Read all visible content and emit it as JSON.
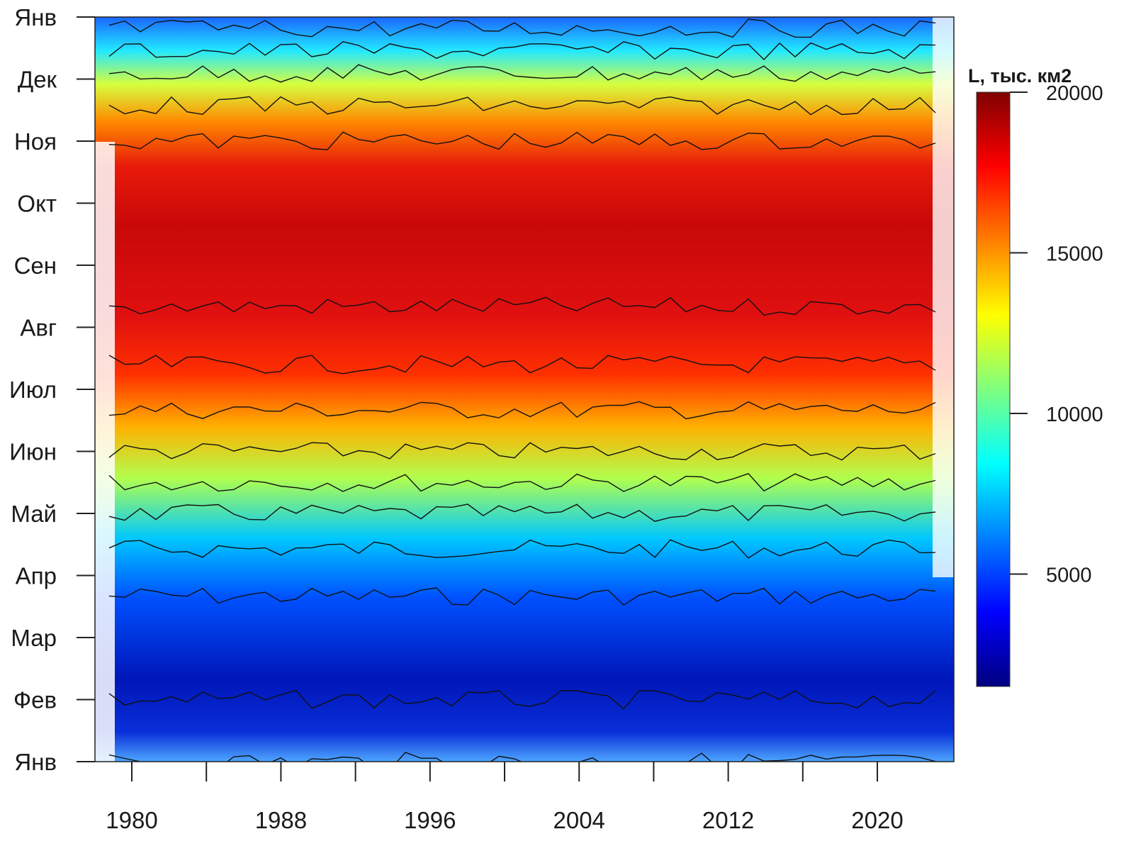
{
  "chart_data": {
    "type": "heatmap",
    "title": "",
    "xlabel": "",
    "ylabel": "",
    "x_ticks": [
      1980,
      1984,
      1988,
      1992,
      1996,
      2000,
      2004,
      2008,
      2012,
      2016,
      2020
    ],
    "x_tick_labels": [
      "1980",
      "1988",
      "1996",
      "2004",
      "2012",
      "2020"
    ],
    "xlim": [
      1978,
      2023
    ],
    "y_tick_labels": [
      "Янв",
      "Фев",
      "Мар",
      "Апр",
      "Май",
      "Июн",
      "Июл",
      "Авг",
      "Сен",
      "Окт",
      "Ноя",
      "Дек",
      "Янв"
    ],
    "colorbar": {
      "title": "L, тыс. км2",
      "ticks": [
        5000,
        10000,
        15000,
        20000
      ],
      "tick_labels": [
        "5000",
        "10000",
        "15000",
        "20000"
      ],
      "range": [
        1500,
        20000
      ],
      "colors": [
        "#00007f",
        "#0000ff",
        "#007fff",
        "#00ffff",
        "#7fff7f",
        "#ffff00",
        "#ff7f00",
        "#ff0000",
        "#7f0000"
      ]
    },
    "monthly_mean_L": [
      {
        "month": "Янв",
        "value": 5000
      },
      {
        "month": "Фев",
        "value": 3000
      },
      {
        "month": "Мар",
        "value": 2000
      },
      {
        "month": "Апр",
        "value": 3500
      },
      {
        "month": "Май",
        "value": 7000
      },
      {
        "month": "Июн",
        "value": 11000
      },
      {
        "month": "Июл",
        "value": 14000
      },
      {
        "month": "Авг",
        "value": 16500
      },
      {
        "month": "Сен",
        "value": 18000
      },
      {
        "month": "Окт",
        "value": 18500
      },
      {
        "month": "Ноя",
        "value": 17000
      },
      {
        "month": "Дек",
        "value": 13500
      },
      {
        "month": "Янв",
        "value": 8000
      }
    ],
    "contour_interval": 1000,
    "grid": false
  }
}
